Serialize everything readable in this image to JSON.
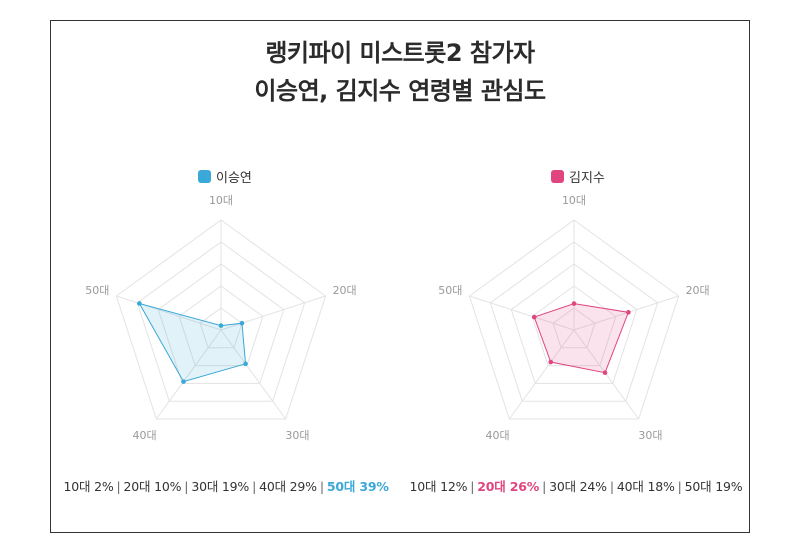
{
  "title": {
    "line1": "랭키파이 미스트롯2 참가자",
    "line2": "이승연, 김지수 연령별 관심도"
  },
  "chart_data": [
    {
      "type": "radar",
      "name": "이승연",
      "color": "#3aa8d8",
      "categories": [
        "10대",
        "20대",
        "30대",
        "40대",
        "50대"
      ],
      "values": [
        2,
        10,
        19,
        29,
        39
      ],
      "highlight_index": 4,
      "rlim": [
        0,
        50
      ],
      "grid": true,
      "legend_position": "top"
    },
    {
      "type": "radar",
      "name": "김지수",
      "color": "#e0457f",
      "categories": [
        "10대",
        "20대",
        "30대",
        "40대",
        "50대"
      ],
      "values": [
        12,
        26,
        24,
        18,
        19
      ],
      "highlight_index": 1,
      "rlim": [
        0,
        50
      ],
      "grid": true,
      "legend_position": "top"
    }
  ]
}
